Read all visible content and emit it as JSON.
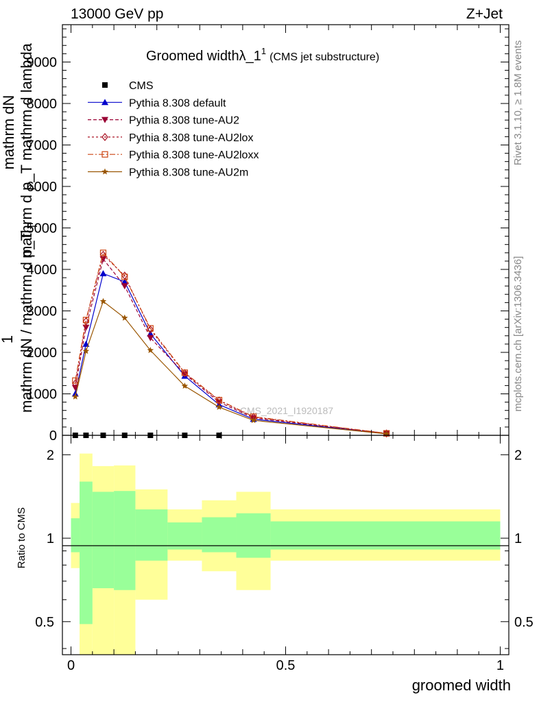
{
  "header": {
    "left": "13000 GeV pp",
    "right": "Z+Jet"
  },
  "side": {
    "rivet": "Rivet 3.1.10, ≥ 1.8M events",
    "mcplots": "mcplots.cern.ch [arXiv:1306.3436]"
  },
  "main_plot": {
    "title": "Groomed width",
    "title_lambda": "λ_1",
    "title_sup": "1",
    "title_suffix": "(CMS jet substructure)",
    "watermark": "CMS_2021_I1920187",
    "ylabel_top": "mathrm dN",
    "ylabel_mid": "mathrm d p_T mathrm d lambda",
    "ylabel_one": "1",
    "ylabel_bottom": "mathrm dN / mathrm d p_T",
    "ylabel_sub": "T",
    "ytick_labels": [
      "0",
      "1000",
      "2000",
      "3000",
      "4000",
      "5000",
      "6000",
      "7000",
      "8000",
      "9000"
    ]
  },
  "ratio_plot": {
    "ylabel": "Ratio to CMS",
    "ytick_labels": [
      "0.5",
      "1",
      "2"
    ],
    "xtick_labels": [
      "0",
      "0.5",
      "1"
    ],
    "xlabel": "groomed width"
  },
  "legend": {
    "entries": [
      "CMS",
      "Pythia 8.308 default",
      "Pythia 8.308 tune-AU2",
      "Pythia 8.308 tune-AU2lox",
      "Pythia 8.308 tune-AU2loxx",
      "Pythia 8.308 tune-AU2m"
    ]
  },
  "chart_data": {
    "type": "line",
    "x_range": [
      -0.02,
      1.02
    ],
    "main": {
      "y_range": [
        0,
        9900
      ],
      "x": [
        0.01,
        0.035,
        0.075,
        0.125,
        0.185,
        0.265,
        0.345,
        0.425,
        0.735
      ],
      "series": [
        {
          "name": "CMS",
          "color": "#000000",
          "marker": "square",
          "values": [
            0,
            0,
            0,
            0,
            0,
            0,
            0,
            null,
            null
          ]
        },
        {
          "name": "Pythia 8.308 default",
          "color": "#0000cc",
          "marker": "triangle-up",
          "dash": "",
          "values": [
            1000,
            2200,
            3900,
            3700,
            2450,
            1430,
            740,
            390,
            40
          ]
        },
        {
          "name": "Pythia 8.308 tune-AU2",
          "color": "#990033",
          "marker": "triangle-down",
          "dash": "5,3",
          "values": [
            1150,
            2600,
            4250,
            3600,
            2350,
            1480,
            800,
            420,
            45
          ]
        },
        {
          "name": "Pythia 8.308 tune-AU2lox",
          "color": "#aa1122",
          "marker": "diamond",
          "dash": "3,3",
          "values": [
            1250,
            2750,
            4350,
            3850,
            2550,
            1500,
            840,
            440,
            45
          ]
        },
        {
          "name": "Pythia 8.308 tune-AU2loxx",
          "color": "#cc4411",
          "marker": "square-open",
          "dash": "8,3,2,3",
          "values": [
            1320,
            2780,
            4400,
            3820,
            2580,
            1510,
            850,
            450,
            48
          ]
        },
        {
          "name": "Pythia 8.308 tune-AU2m",
          "color": "#995500",
          "marker": "star",
          "dash": "",
          "values": [
            930,
            2030,
            3230,
            2830,
            2050,
            1190,
            680,
            360,
            35
          ]
        }
      ]
    },
    "ratio": {
      "y_scale": "log",
      "y_range": [
        0.38,
        2.35
      ],
      "reference": 1,
      "bands": [
        {
          "x0": 0.0,
          "x1": 0.02,
          "yellow": [
            0.78,
            1.34
          ],
          "green": [
            0.89,
            1.18
          ]
        },
        {
          "x0": 0.02,
          "x1": 0.05,
          "yellow": [
            0.38,
            2.02
          ],
          "green": [
            0.49,
            1.6
          ]
        },
        {
          "x0": 0.05,
          "x1": 0.1,
          "yellow": [
            0.38,
            1.82
          ],
          "green": [
            0.66,
            1.47
          ]
        },
        {
          "x0": 0.1,
          "x1": 0.15,
          "yellow": [
            0.38,
            1.83
          ],
          "green": [
            0.65,
            1.48
          ]
        },
        {
          "x0": 0.15,
          "x1": 0.225,
          "yellow": [
            0.6,
            1.5
          ],
          "green": [
            0.83,
            1.27
          ]
        },
        {
          "x0": 0.225,
          "x1": 0.305,
          "yellow": [
            0.83,
            1.27
          ],
          "green": [
            0.91,
            1.14
          ]
        },
        {
          "x0": 0.305,
          "x1": 0.385,
          "yellow": [
            0.76,
            1.37
          ],
          "green": [
            0.89,
            1.19
          ]
        },
        {
          "x0": 0.385,
          "x1": 0.465,
          "yellow": [
            0.65,
            1.47
          ],
          "green": [
            0.85,
            1.23
          ]
        },
        {
          "x0": 0.465,
          "x1": 1.0,
          "yellow": [
            0.83,
            1.27
          ],
          "green": [
            0.91,
            1.15
          ]
        }
      ]
    },
    "colors": {
      "yellow_band": "#ffff99",
      "green_band": "#99ff99"
    }
  }
}
